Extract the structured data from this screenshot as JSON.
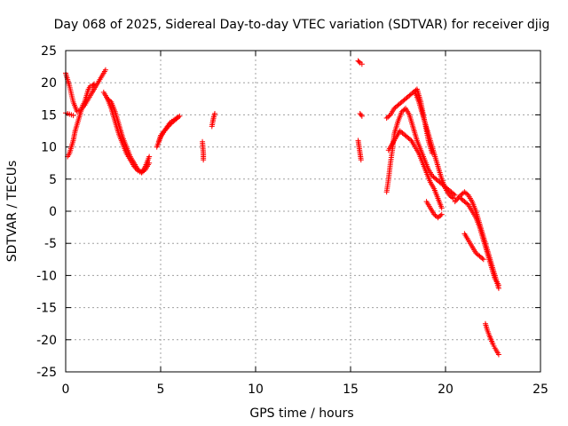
{
  "chart_data": {
    "type": "scatter",
    "title": "Day 068 of 2025, Sidereal Day-to-day VTEC variation (SDTVAR) for receiver djig",
    "xlabel": "GPS time / hours",
    "ylabel": "SDTVAR / TECUs",
    "xlim": [
      0,
      25
    ],
    "ylim": [
      -25,
      25
    ],
    "xticks": [
      0,
      5,
      10,
      15,
      20,
      25
    ],
    "yticks": [
      -25,
      -20,
      -15,
      -10,
      -5,
      0,
      5,
      10,
      15,
      20,
      25
    ],
    "xtick_labels": [
      "0",
      "5",
      "10",
      "15",
      "20",
      "25"
    ],
    "ytick_labels": [
      "-25",
      "-20",
      "-15",
      "-10",
      "-5",
      "0",
      "5",
      "10",
      "15",
      "20",
      "25"
    ],
    "grid": true,
    "marker": "+",
    "color": "#ff0000",
    "series": [
      {
        "name": "SDTVAR",
        "segments": [
          {
            "name": "track-early-high",
            "x": [
              0.0,
              0.2,
              0.4,
              0.6,
              0.8,
              1.0,
              1.2,
              1.4,
              1.6,
              1.8,
              2.0,
              2.1
            ],
            "y": [
              21.5,
              19.5,
              17.0,
              15.5,
              15.8,
              16.5,
              17.5,
              18.5,
              19.5,
              20.5,
              21.5,
              22.0
            ]
          },
          {
            "name": "track-early-low",
            "x": [
              0.1,
              0.2,
              0.3,
              0.4,
              0.5,
              0.6,
              0.7,
              0.8,
              0.9,
              1.0,
              1.1,
              1.2,
              1.3,
              1.4,
              1.5
            ],
            "y": [
              8.5,
              9.0,
              10.0,
              11.0,
              12.5,
              13.5,
              14.5,
              15.5,
              16.5,
              17.0,
              18.0,
              19.0,
              19.5,
              19.5,
              19.8
            ]
          },
          {
            "name": "track-early-flat",
            "x": [
              0.0,
              0.1,
              0.2,
              0.3,
              0.4
            ],
            "y": [
              15.3,
              15.2,
              15.1,
              15.0,
              14.9
            ]
          },
          {
            "name": "track-decline",
            "x": [
              2.0,
              2.2,
              2.4,
              2.6,
              2.8,
              3.0,
              3.2,
              3.4,
              3.6,
              3.8,
              4.0,
              4.2,
              4.4
            ],
            "y": [
              18.5,
              17.5,
              16.0,
              14.0,
              12.0,
              10.5,
              9.0,
              8.0,
              7.0,
              6.3,
              6.0,
              6.5,
              7.5
            ]
          },
          {
            "name": "track-decline-2",
            "x": [
              2.2,
              2.4,
              2.6,
              2.8,
              3.0,
              3.2,
              3.4,
              3.6,
              3.8,
              4.0,
              4.2,
              4.4
            ],
            "y": [
              17.5,
              17.0,
              15.5,
              13.5,
              11.5,
              10.0,
              8.5,
              7.5,
              6.5,
              6.0,
              7.0,
              8.5
            ]
          },
          {
            "name": "track-recovery",
            "x": [
              4.8,
              5.0,
              5.2,
              5.4,
              5.6,
              5.8,
              6.0,
              5.5,
              5.2,
              5.0,
              4.9
            ],
            "y": [
              10.0,
              11.5,
              12.5,
              13.2,
              13.8,
              14.3,
              14.8,
              13.8,
              12.5,
              11.8,
              10.8
            ]
          },
          {
            "name": "track-isolated-7",
            "x": [
              7.2,
              7.25,
              7.25
            ],
            "y": [
              10.8,
              9.0,
              8.0
            ]
          },
          {
            "name": "track-isolated-7-8",
            "x": [
              7.7,
              7.75,
              7.8,
              7.85
            ],
            "y": [
              13.2,
              14.0,
              14.7,
              15.2
            ]
          },
          {
            "name": "track-15-top",
            "x": [
              15.4,
              15.5,
              15.6
            ],
            "y": [
              23.4,
              23.1,
              22.9
            ]
          },
          {
            "name": "track-15-mid",
            "x": [
              15.5,
              15.6
            ],
            "y": [
              15.2,
              14.8
            ]
          },
          {
            "name": "track-15-low",
            "x": [
              15.4,
              15.45,
              15.5,
              15.55
            ],
            "y": [
              11.0,
              10.0,
              9.0,
              8.0
            ]
          },
          {
            "name": "track-17-rise",
            "x": [
              16.9,
              17.0,
              17.1,
              17.2,
              17.3,
              17.5,
              17.7,
              17.9,
              18.1,
              18.3,
              18.5,
              18.7,
              18.9,
              19.1,
              19.3,
              19.5,
              19.7,
              19.9,
              20.1,
              20.3,
              20.5
            ],
            "y": [
              3.0,
              5.0,
              7.5,
              9.5,
              12.0,
              14.0,
              15.5,
              16.0,
              15.0,
              13.0,
              11.0,
              9.5,
              8.0,
              6.5,
              5.5,
              5.0,
              4.5,
              4.0,
              3.5,
              3.0,
              2.5
            ]
          },
          {
            "name": "track-17-upper",
            "x": [
              16.9,
              17.1,
              17.3,
              17.5,
              17.7,
              17.9,
              18.1,
              18.3,
              18.5,
              18.7,
              18.9,
              19.1,
              19.3
            ],
            "y": [
              14.5,
              15.0,
              16.0,
              16.5,
              17.0,
              17.5,
              18.0,
              18.5,
              19.0,
              17.0,
              14.0,
              11.0,
              9.0
            ]
          },
          {
            "name": "track-17-band",
            "x": [
              17.0,
              17.2,
              17.4,
              17.6,
              17.8,
              18.0,
              18.2,
              18.4,
              18.6,
              18.8,
              19.0,
              19.2,
              19.4,
              19.6,
              19.8
            ],
            "y": [
              9.5,
              10.5,
              11.5,
              12.5,
              12.0,
              11.5,
              11.0,
              10.0,
              9.0,
              7.5,
              6.0,
              4.5,
              3.5,
              2.0,
              0.5
            ]
          },
          {
            "name": "track-18-column",
            "x": [
              18.4,
              18.6,
              18.8,
              19.0,
              19.2,
              19.4,
              19.6,
              19.8,
              20.0,
              20.2,
              20.4
            ],
            "y": [
              18.5,
              17.0,
              15.0,
              13.0,
              11.0,
              9.0,
              7.0,
              5.0,
              3.5,
              2.5,
              2.0
            ]
          },
          {
            "name": "track-19-low",
            "x": [
              19.0,
              19.2,
              19.4,
              19.6,
              19.8
            ],
            "y": [
              1.5,
              0.5,
              -0.5,
              -1.0,
              -0.5
            ]
          },
          {
            "name": "track-21-descent",
            "x": [
              20.5,
              20.8,
              21.0,
              21.2,
              21.4,
              21.6,
              21.8,
              22.0,
              22.2,
              22.4,
              22.6,
              22.8
            ],
            "y": [
              1.5,
              2.5,
              3.0,
              2.5,
              1.5,
              0.0,
              -2.0,
              -4.0,
              -6.0,
              -8.0,
              -10.0,
              -12.0
            ]
          },
          {
            "name": "track-21-descent-2",
            "x": [
              20.8,
              21.0,
              21.2,
              21.4,
              21.6,
              21.8,
              22.0,
              22.2,
              22.4,
              22.6,
              22.8
            ],
            "y": [
              2.0,
              1.5,
              1.0,
              0.0,
              -1.0,
              -2.5,
              -4.5,
              -6.5,
              -8.5,
              -10.5,
              -11.5
            ]
          },
          {
            "name": "track-21-mid",
            "x": [
              21.0,
              21.2,
              21.4,
              21.6,
              21.8,
              22.0
            ],
            "y": [
              -3.5,
              -4.5,
              -5.5,
              -6.5,
              -7.0,
              -7.5
            ]
          },
          {
            "name": "track-22-deep",
            "x": [
              22.1,
              22.2,
              22.3,
              22.4,
              22.5,
              22.6,
              22.7,
              22.8
            ],
            "y": [
              -17.5,
              -18.5,
              -19.3,
              -20.0,
              -20.7,
              -21.3,
              -21.8,
              -22.3
            ]
          }
        ]
      }
    ]
  }
}
